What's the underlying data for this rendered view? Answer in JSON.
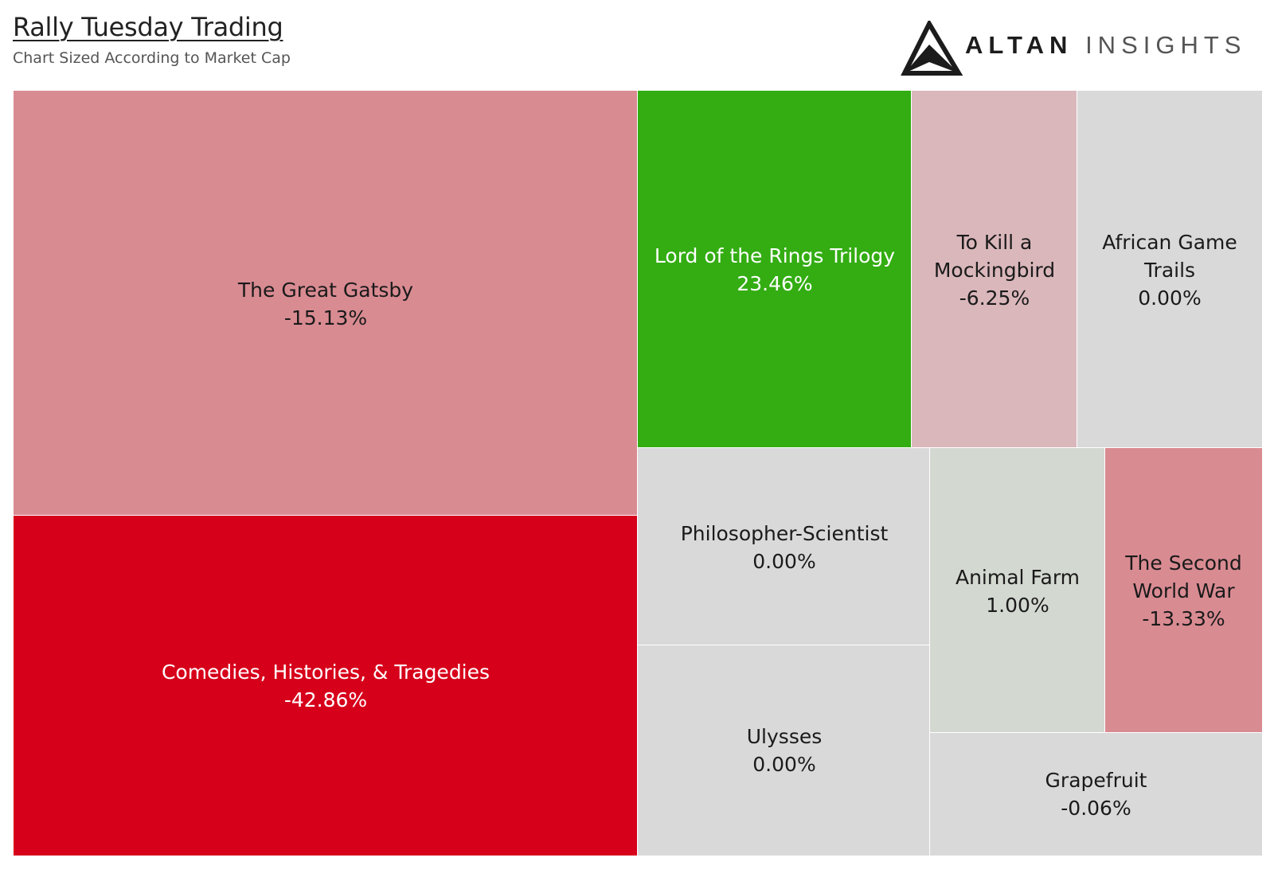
{
  "header": {
    "title": "Rally Tuesday Trading",
    "subtitle": "Chart Sized According to Market Cap"
  },
  "logo": {
    "word1": "ALTAN",
    "word2": "INSIGHTS",
    "icon": "triangle-a-logo-icon"
  },
  "colors": {
    "strong_negative": "#d7001b",
    "negative": "#d98b92",
    "light_negative": "#dab7bb",
    "neutral": "#d9d9d9",
    "light_positive": "#d3d8d1",
    "positive": "#33ad12",
    "cell_border": "#ffffff"
  },
  "chart_data": {
    "type": "treemap",
    "title": "Rally Tuesday Trading",
    "subtitle": "Chart Sized According to Market Cap",
    "items": [
      {
        "id": "gatsby",
        "name": "The Great Gatsby",
        "change": "-15.13%",
        "value": -15.13
      },
      {
        "id": "comedies",
        "name": "Comedies, Histories, & Tragedies",
        "change": "-42.86%",
        "value": -42.86
      },
      {
        "id": "lotr",
        "name": "Lord of the Rings Trilogy",
        "change": "23.46%",
        "value": 23.46
      },
      {
        "id": "mockingbird",
        "name": "To Kill a Mockingbird",
        "change": "-6.25%",
        "value": -6.25
      },
      {
        "id": "african",
        "name": "African Game Trails",
        "change": "0.00%",
        "value": 0.0
      },
      {
        "id": "philosopher",
        "name": "Philosopher-Scientist",
        "change": "0.00%",
        "value": 0.0
      },
      {
        "id": "ulysses",
        "name": "Ulysses",
        "change": "0.00%",
        "value": 0.0
      },
      {
        "id": "animal",
        "name": "Animal Farm",
        "change": "1.00%",
        "value": 1.0
      },
      {
        "id": "secondww",
        "name": "The Second World War",
        "change": "-13.33%",
        "value": -13.33
      },
      {
        "id": "grapefruit",
        "name": "Grapefruit",
        "change": "-0.06%",
        "value": -0.06
      }
    ]
  }
}
